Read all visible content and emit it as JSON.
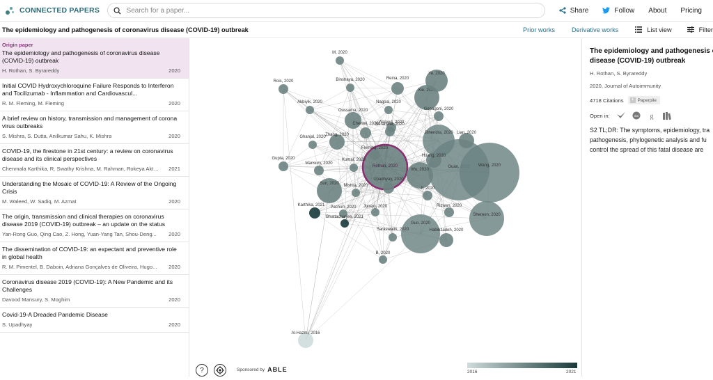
{
  "brand": {
    "name": "CONNECTED PAPERS"
  },
  "search": {
    "placeholder": "Search for a paper..."
  },
  "nav": {
    "share": "Share",
    "follow": "Follow",
    "about": "About",
    "pricing": "Pricing"
  },
  "titlebar": {
    "title": "The epidemiology and pathogenesis of coronavirus disease (COVID-19) outbreak",
    "prior_works": "Prior works",
    "derivative_works": "Derivative works",
    "list_view": "List view",
    "filter": "Filter"
  },
  "origin_label": "Origin paper",
  "papers": [
    {
      "title": "The epidemiology and pathogenesis of coronavirus disease (COVID-19) outbreak",
      "authors": "H. Rothan, S. Byrareddy",
      "year": "2020"
    },
    {
      "title": "Initial COVID Hydroxychloroquine Failure Responds to Interferon and Tocilizumab - Inflammation and Cardiovascul...",
      "authors": "R. M. Fleming, M. Fleming",
      "year": "2020"
    },
    {
      "title": "A brief review on history, transmission and management of corona virus outbreaks",
      "authors": "S. Mishra, S. Dutta, Anilkumar Sahu, K. Mishra",
      "year": "2020"
    },
    {
      "title": "COVID-19, the firestone in 21st century: a review on coronavirus disease and its clinical perspectives",
      "authors": "Chenmala Karthika, R. Swathy Krishna, M. Rahman, Rokeya Akte...",
      "year": "2021"
    },
    {
      "title": "Understanding the Mosaic of COVID-19: A Review of the Ongoing Crisis",
      "authors": "M. Waleed, W. Sadiq, M. Azmat",
      "year": "2020"
    },
    {
      "title": "The origin, transmission and clinical therapies on coronavirus disease 2019 (COVID-19) outbreak – an update on the status",
      "authors": "Yan-Rong Guo, Qing Cao, Z. Hong, Yuan-Yang Tan, Shou-Deng...",
      "year": "2020"
    },
    {
      "title": "The dissemination of COVID-19: an expectant and preventive role in global health",
      "authors": "R. M. Pimentel, B. Daboin, Adriana Gonçalves de Oliveira, Hugo...",
      "year": "2020"
    },
    {
      "title": "Coronavirus disease 2019 (COVID-19): A New Pandemic and its Challenges",
      "authors": "Davood Mansury, S. Moghim",
      "year": "2020"
    },
    {
      "title": "Covid-19-A Dreaded Pandemic Disease",
      "authors": "S. Upadhyay",
      "year": "2020"
    }
  ],
  "graph": {
    "nodes": [
      {
        "label": "M, 2020",
        "year": 2020
      },
      {
        "label": "Rois, 2020",
        "year": 2020
      },
      {
        "label": "Binshaya, 2020",
        "year": 2020
      },
      {
        "label": "Reina, 2020",
        "year": 2020
      },
      {
        "label": "Ye, 2020",
        "year": 2020
      },
      {
        "label": "Xie, 2020",
        "year": 2020
      },
      {
        "label": "Akbiyik, 2020",
        "year": 2020
      },
      {
        "label": "Nagpal, 2020",
        "year": 2020
      },
      {
        "label": "Gopagoni, 2020",
        "year": 2020
      },
      {
        "label": "Oussama, 2020",
        "year": 2020
      },
      {
        "label": "Waleed, 2020",
        "year": 2020
      },
      {
        "label": "Chentel, 2020",
        "year": 2020
      },
      {
        "label": "Jithendra, 2020",
        "year": 2020
      },
      {
        "label": "Zhang, 2020",
        "year": 2020
      },
      {
        "label": "Ghanjal, 2020",
        "year": 2020
      },
      {
        "label": "Baranwal, 2020",
        "year": 2020
      },
      {
        "label": "Lian, 2020",
        "year": 2020
      },
      {
        "label": "Fleming, 2020",
        "year": 2020
      },
      {
        "label": "Gupta, 2020",
        "year": 2020
      },
      {
        "label": "Mansury, 2020",
        "year": 2020
      },
      {
        "label": "Kumar, 2020",
        "year": 2020
      },
      {
        "label": "Huang, 2020",
        "year": 2020
      },
      {
        "label": "Rothan, 2020",
        "year": 2020
      },
      {
        "label": "Wu, 2020",
        "year": 2020
      },
      {
        "label": "Guan, 2020",
        "year": 2020
      },
      {
        "label": "Wang, 2020",
        "year": 2020
      },
      {
        "label": "Sun, 2020",
        "year": 2020
      },
      {
        "label": "Upadhyay, 2020",
        "year": 2020
      },
      {
        "label": "Mishra, 2020",
        "year": 2020
      },
      {
        "label": "Ji, 2020",
        "year": 2020
      },
      {
        "label": "Karthika, 2021",
        "year": 2021
      },
      {
        "label": "Pachori, 2020",
        "year": 2020
      },
      {
        "label": "Junejo, 2020",
        "year": 2020
      },
      {
        "label": "Rizwan, 2020",
        "year": 2020
      },
      {
        "label": "Shereen, 2020",
        "year": 2020
      },
      {
        "label": "Bhattacharjee, 2021",
        "year": 2021
      },
      {
        "label": "Saraswathi, 2020",
        "year": 2020
      },
      {
        "label": "Guo, 2020",
        "year": 2020
      },
      {
        "label": "Habibzadeh, 2020",
        "year": 2020
      },
      {
        "label": "B, 2020",
        "year": 2020
      },
      {
        "label": "Al-Hazmi, 2016",
        "year": 2016
      }
    ],
    "legend": {
      "min_year": "2016",
      "max_year": "2021",
      "colors": [
        "#cfdcdb",
        "#193a3a"
      ]
    },
    "origin_color": "#8b2f72"
  },
  "graph_footer": {
    "help": "?",
    "sponsored_by": "Sponsored by",
    "sponsor": "ABLE"
  },
  "detail": {
    "title_line1": "The epidemiology and pathogenesis o",
    "title_line2": "disease (COVID-19) outbreak",
    "authors": "H. Rothan, S. Byrareddy",
    "journal": "2020, Journal of Autoimmunity",
    "citations": "4718 Citations",
    "paperpile": "Paperpile",
    "open_in": "Open in:",
    "tldr_lines": [
      "S2 TL;DR: The symptoms, epidemiology, tra",
      "pathogenesis, phylogenetic analysis and fu",
      "control the spread of this fatal disease are"
    ]
  }
}
